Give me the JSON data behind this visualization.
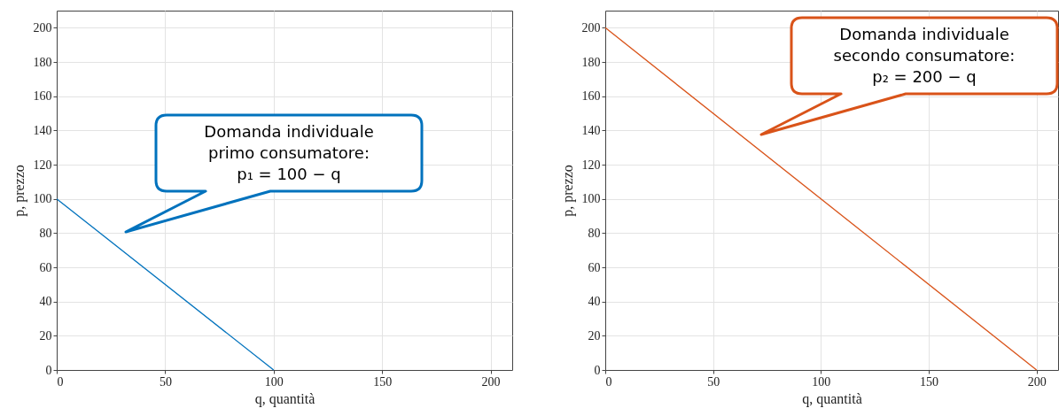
{
  "chart_data": [
    {
      "type": "line",
      "xlabel": "q, quantità",
      "ylabel": "p, prezzo",
      "x": [
        0,
        100
      ],
      "values": [
        100,
        0
      ],
      "color": "#0072bd",
      "xlim": [
        0,
        210
      ],
      "ylim": [
        0,
        210
      ],
      "xticks": [
        0,
        50,
        100,
        150,
        200
      ],
      "yticks": [
        0,
        20,
        40,
        60,
        80,
        100,
        120,
        140,
        160,
        180,
        200
      ],
      "grid": true,
      "annotations": [
        "Domanda individuale\nprimo consumatore:\np₁ = 100 − q"
      ]
    },
    {
      "type": "line",
      "xlabel": "q, quantità",
      "ylabel": "p, prezzo",
      "x": [
        0,
        200
      ],
      "values": [
        200,
        0
      ],
      "color": "#d95319",
      "xlim": [
        0,
        210
      ],
      "ylim": [
        0,
        210
      ],
      "xticks": [
        0,
        50,
        100,
        150,
        200
      ],
      "yticks": [
        0,
        20,
        40,
        60,
        80,
        100,
        120,
        140,
        160,
        180,
        200
      ],
      "grid": true,
      "annotations": [
        "Domanda individuale\nsecondo consumatore:\np₂ = 200 − q"
      ]
    }
  ]
}
